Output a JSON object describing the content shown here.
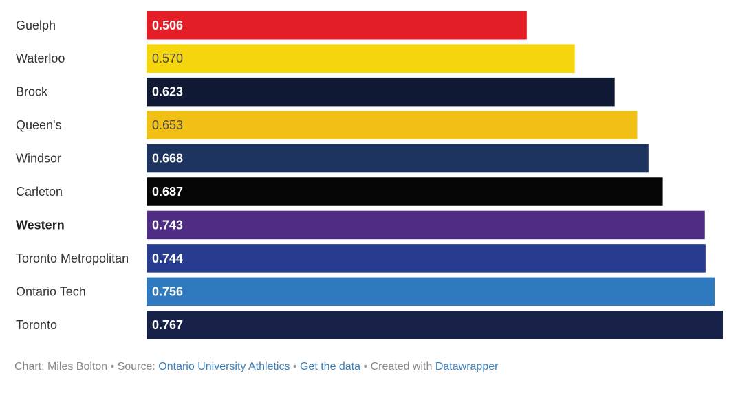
{
  "chart_data": {
    "type": "bar",
    "orientation": "horizontal",
    "categories": [
      "Guelph",
      "Waterloo",
      "Brock",
      "Queen's",
      "Windsor",
      "Carleton",
      "Western",
      "Toronto Metropolitan",
      "Ontario Tech",
      "Toronto"
    ],
    "values": [
      0.506,
      0.57,
      0.623,
      0.653,
      0.668,
      0.687,
      0.743,
      0.744,
      0.756,
      0.767
    ],
    "value_labels": [
      "0.506",
      "0.570",
      "0.623",
      "0.653",
      "0.668",
      "0.687",
      "0.743",
      "0.744",
      "0.756",
      "0.767"
    ],
    "colors": [
      "#e31e26",
      "#f5d60e",
      "#0f1934",
      "#f2bf16",
      "#1d3461",
      "#050505",
      "#4f2d85",
      "#283c8f",
      "#2f79be",
      "#182148"
    ],
    "label_colors": [
      "#ffffff",
      "#4a4a4a",
      "#ffffff",
      "#4a4a4a",
      "#ffffff",
      "#ffffff",
      "#ffffff",
      "#ffffff",
      "#ffffff",
      "#ffffff"
    ],
    "highlighted": [
      "Western"
    ],
    "xlim": [
      0,
      0.767
    ],
    "title": "",
    "xlabel": "",
    "ylabel": ""
  },
  "footer": {
    "chart_prefix": "Chart: Miles Bolton",
    "source_prefix": "Source:",
    "source_link": "Ontario University Athletics",
    "data_link": "Get the data",
    "created_prefix": "Created with",
    "created_link": "Datawrapper",
    "separator": "•"
  }
}
